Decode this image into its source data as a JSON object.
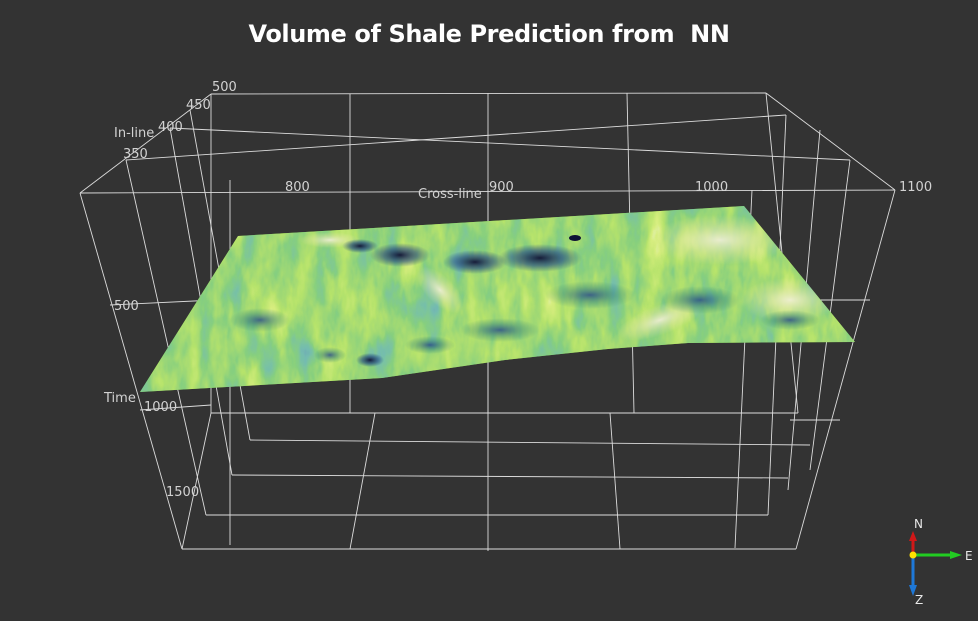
{
  "chart_data": {
    "type": "heatmap",
    "subtype": "3d-horizon-surface",
    "title": "Volume of Shale Prediction from  NN",
    "axes": {
      "inline": {
        "label": "In-line",
        "ticks": [
          "350",
          "400",
          "450",
          "500"
        ]
      },
      "crossline": {
        "label": "Cross-line",
        "ticks": [
          "800",
          "900",
          "1000",
          "1100"
        ]
      },
      "time": {
        "label": "Time",
        "ticks": [
          "500",
          "1000",
          "1500"
        ]
      }
    },
    "colormap": [
      "#1a1a3d",
      "#234a8a",
      "#2d7f7a",
      "#3fa03a",
      "#7cc72a",
      "#b9e03a",
      "#e3e7b0",
      "#ffffff"
    ],
    "grid": true,
    "background": "#333333"
  },
  "compass": {
    "north": "N",
    "east": "E",
    "down": "Z"
  }
}
